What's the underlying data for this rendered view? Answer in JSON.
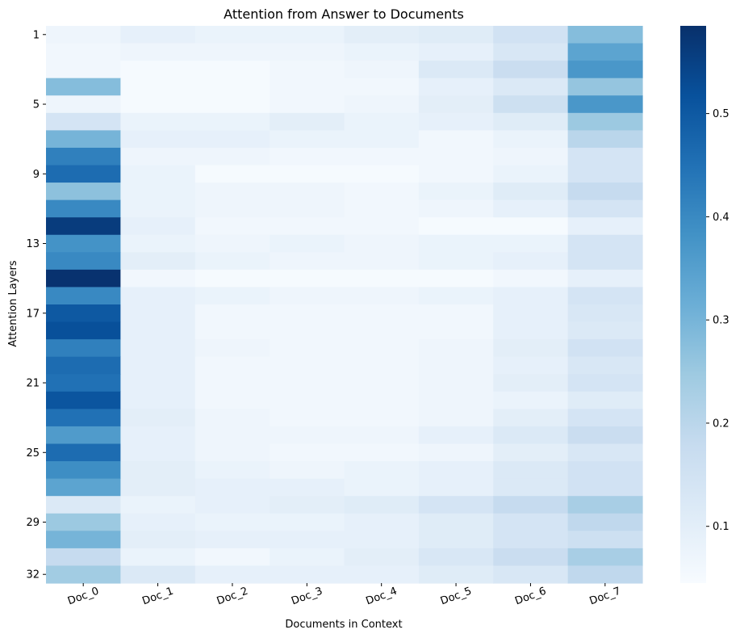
{
  "chart_data": {
    "type": "heatmap",
    "title": "Attention from Answer to Documents",
    "xlabel": "Documents in Context",
    "ylabel": "Attention Layers",
    "x_categories": [
      "Doc_0",
      "Doc_1",
      "Doc_2",
      "Doc_3",
      "Doc_4",
      "Doc_5",
      "Doc_6",
      "Doc_7"
    ],
    "y_categories": [
      "1",
      "2",
      "3",
      "4",
      "5",
      "6",
      "7",
      "8",
      "9",
      "10",
      "11",
      "12",
      "13",
      "14",
      "15",
      "16",
      "17",
      "18",
      "19",
      "20",
      "21",
      "22",
      "23",
      "24",
      "25",
      "26",
      "27",
      "28",
      "29",
      "30",
      "31",
      "32"
    ],
    "y_tick_labels": [
      "1",
      "5",
      "9",
      "13",
      "17",
      "21",
      "25",
      "29",
      "32"
    ],
    "values": [
      [
        0.07,
        0.09,
        0.08,
        0.08,
        0.1,
        0.11,
        0.15,
        0.28
      ],
      [
        0.06,
        0.07,
        0.07,
        0.07,
        0.08,
        0.09,
        0.13,
        0.34
      ],
      [
        0.06,
        0.05,
        0.05,
        0.06,
        0.07,
        0.12,
        0.17,
        0.37
      ],
      [
        0.28,
        0.05,
        0.05,
        0.06,
        0.06,
        0.09,
        0.12,
        0.26
      ],
      [
        0.07,
        0.05,
        0.05,
        0.06,
        0.07,
        0.1,
        0.16,
        0.37
      ],
      [
        0.14,
        0.08,
        0.08,
        0.1,
        0.08,
        0.09,
        0.11,
        0.25
      ],
      [
        0.3,
        0.09,
        0.09,
        0.08,
        0.08,
        0.06,
        0.08,
        0.2
      ],
      [
        0.42,
        0.07,
        0.07,
        0.06,
        0.06,
        0.06,
        0.07,
        0.14
      ],
      [
        0.46,
        0.08,
        0.05,
        0.05,
        0.05,
        0.06,
        0.08,
        0.14
      ],
      [
        0.27,
        0.08,
        0.07,
        0.07,
        0.06,
        0.08,
        0.11,
        0.18
      ],
      [
        0.4,
        0.08,
        0.07,
        0.07,
        0.06,
        0.07,
        0.09,
        0.14
      ],
      [
        0.56,
        0.09,
        0.06,
        0.06,
        0.06,
        0.05,
        0.05,
        0.09
      ],
      [
        0.38,
        0.08,
        0.07,
        0.08,
        0.07,
        0.08,
        0.08,
        0.14
      ],
      [
        0.4,
        0.1,
        0.08,
        0.07,
        0.07,
        0.08,
        0.09,
        0.14
      ],
      [
        0.58,
        0.06,
        0.05,
        0.05,
        0.05,
        0.05,
        0.06,
        0.09
      ],
      [
        0.4,
        0.09,
        0.08,
        0.07,
        0.07,
        0.08,
        0.09,
        0.14
      ],
      [
        0.5,
        0.09,
        0.06,
        0.06,
        0.06,
        0.06,
        0.09,
        0.13
      ],
      [
        0.52,
        0.09,
        0.06,
        0.06,
        0.06,
        0.06,
        0.09,
        0.12
      ],
      [
        0.42,
        0.09,
        0.07,
        0.06,
        0.06,
        0.07,
        0.1,
        0.15
      ],
      [
        0.46,
        0.09,
        0.06,
        0.06,
        0.06,
        0.07,
        0.09,
        0.13
      ],
      [
        0.45,
        0.09,
        0.06,
        0.06,
        0.06,
        0.07,
        0.1,
        0.14
      ],
      [
        0.51,
        0.09,
        0.06,
        0.06,
        0.06,
        0.07,
        0.08,
        0.11
      ],
      [
        0.45,
        0.1,
        0.07,
        0.06,
        0.06,
        0.07,
        0.1,
        0.14
      ],
      [
        0.36,
        0.09,
        0.07,
        0.07,
        0.07,
        0.09,
        0.12,
        0.17
      ],
      [
        0.46,
        0.09,
        0.07,
        0.06,
        0.06,
        0.07,
        0.1,
        0.13
      ],
      [
        0.39,
        0.1,
        0.08,
        0.07,
        0.08,
        0.09,
        0.12,
        0.15
      ],
      [
        0.34,
        0.1,
        0.09,
        0.09,
        0.08,
        0.09,
        0.12,
        0.15
      ],
      [
        0.12,
        0.08,
        0.09,
        0.1,
        0.11,
        0.14,
        0.18,
        0.23
      ],
      [
        0.25,
        0.09,
        0.08,
        0.08,
        0.09,
        0.11,
        0.14,
        0.19
      ],
      [
        0.3,
        0.1,
        0.09,
        0.09,
        0.09,
        0.11,
        0.14,
        0.16
      ],
      [
        0.18,
        0.08,
        0.06,
        0.08,
        0.1,
        0.13,
        0.17,
        0.23
      ],
      [
        0.24,
        0.12,
        0.09,
        0.09,
        0.09,
        0.11,
        0.13,
        0.19
      ]
    ],
    "colormap": "Blues",
    "colorbar": {
      "vmin": 0.045,
      "vmax": 0.585,
      "ticks": [
        0.1,
        0.2,
        0.3,
        0.4,
        0.5
      ],
      "tick_labels": [
        "0.1",
        "0.2",
        "0.3",
        "0.4",
        "0.5"
      ]
    },
    "grid": false
  }
}
